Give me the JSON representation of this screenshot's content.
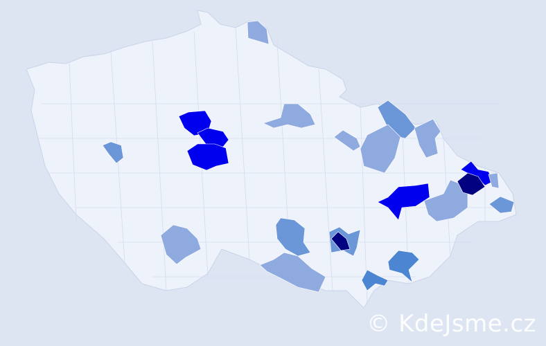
{
  "watermark": "© KdeJsme.cz",
  "colors": {
    "background": "#dce5f1",
    "land": "#eef2fa",
    "level1": "#8eaadf",
    "level2": "#6b96d8",
    "level3": "#4c86d2",
    "level4": "#0000ee",
    "level5": "#000080"
  }
}
